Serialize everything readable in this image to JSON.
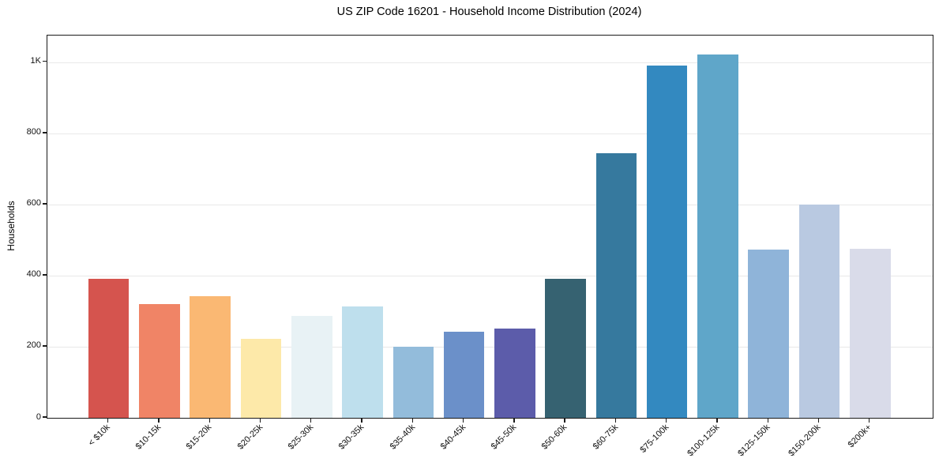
{
  "chart_data": {
    "type": "bar",
    "title": "US ZIP Code 16201 - Household Income Distribution (2024)",
    "xlabel": "",
    "ylabel": "Households",
    "categories": [
      "< $10k",
      "$10-15k",
      "$15-20k",
      "$20-25k",
      "$25-30k",
      "$30-35k",
      "$35-40k",
      "$40-45k",
      "$45-50k",
      "$50-60k",
      "$60-75k",
      "$75-100k",
      "$100-125k",
      "$125-150k",
      "$150-200k",
      "$200k+"
    ],
    "values": [
      390,
      320,
      343,
      222,
      287,
      314,
      200,
      242,
      252,
      390,
      744,
      990,
      1022,
      473,
      599,
      475
    ],
    "bar_colors": [
      "#d5544e",
      "#f08466",
      "#fab873",
      "#fde9a9",
      "#e8f2f5",
      "#bedfed",
      "#93bcdb",
      "#6b90c9",
      "#5c5caa",
      "#366271",
      "#36799e",
      "#3389c0",
      "#5fa6c9",
      "#8fb4d9",
      "#b9c9e1",
      "#d9dbe9"
    ],
    "ylim": [
      0,
      1075
    ],
    "yticks": [
      {
        "value": 0,
        "label": "0"
      },
      {
        "value": 200,
        "label": "200"
      },
      {
        "value": 400,
        "label": "400"
      },
      {
        "value": 600,
        "label": "600"
      },
      {
        "value": 800,
        "label": "800"
      },
      {
        "value": 1000,
        "label": "1K"
      }
    ],
    "grid": "horizontal",
    "legend": "none",
    "background_color": "#ffffff",
    "axis_color": "#1a1a1a",
    "grid_color": "#e9e9e9"
  }
}
